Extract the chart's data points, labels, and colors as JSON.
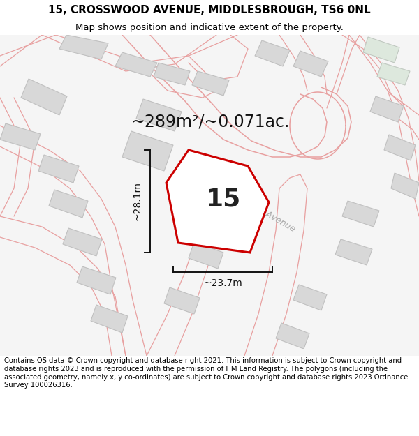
{
  "title_line1": "15, CROSSWOOD AVENUE, MIDDLESBROUGH, TS6 0NL",
  "title_line2": "Map shows position and indicative extent of the property.",
  "area_label": "~289m²/~0.071ac.",
  "width_label": "~23.7m",
  "height_label": "~28.1m",
  "plot_number": "15",
  "footer_text": "Contains OS data © Crown copyright and database right 2021. This information is subject to Crown copyright and database rights 2023 and is reproduced with the permission of HM Land Registry. The polygons (including the associated geometry, namely x, y co-ordinates) are subject to Crown copyright and database rights 2023 Ordnance Survey 100026316.",
  "map_bg": "#f2f2f2",
  "building_fill": "#d8d8d8",
  "building_edge": "#c0c0c0",
  "road_line_color": "#e8a0a0",
  "property_line_color": "#cc0000",
  "property_fill": "#ffffff",
  "dim_line_color": "#111111",
  "crosswood_label_color": "#aaaaaa",
  "title_fontsize": 11,
  "subtitle_fontsize": 9.5,
  "footer_fontsize": 7.2,
  "area_fontsize": 17,
  "number_fontsize": 26,
  "dim_fontsize": 10,
  "crosswood_fontsize": 9
}
